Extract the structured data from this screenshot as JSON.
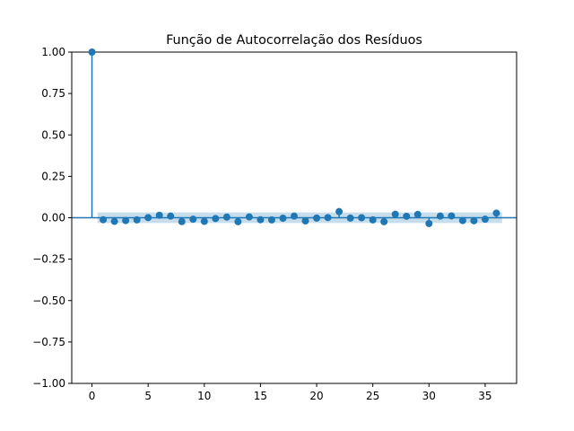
{
  "chart_data": {
    "type": "scatter",
    "title": "Função de Autocorrelação dos Resíduos",
    "xlabel": "",
    "ylabel": "",
    "xlim": [
      -1.8,
      37.8
    ],
    "ylim": [
      -1.0,
      1.0
    ],
    "xticks": [
      0,
      5,
      10,
      15,
      20,
      25,
      30,
      35
    ],
    "yticks": [
      -1.0,
      -0.75,
      -0.5,
      -0.25,
      0.0,
      0.25,
      0.5,
      0.75,
      1.0
    ],
    "ytick_labels": [
      "−1.00",
      "−0.75",
      "−0.50",
      "−0.25",
      "0.00",
      "0.25",
      "0.50",
      "0.75",
      "1.00"
    ],
    "confidence_band": {
      "lower": -0.032,
      "upper": 0.032,
      "x_start": 0.5,
      "x_end": 36.5
    },
    "x": [
      0,
      1,
      2,
      3,
      4,
      5,
      6,
      7,
      8,
      9,
      10,
      11,
      12,
      13,
      14,
      15,
      16,
      17,
      18,
      19,
      20,
      21,
      22,
      23,
      24,
      25,
      26,
      27,
      28,
      29,
      30,
      31,
      32,
      33,
      34,
      35,
      36
    ],
    "values": [
      1.0,
      -0.012,
      -0.022,
      -0.017,
      -0.013,
      0.001,
      0.015,
      0.01,
      -0.023,
      -0.009,
      -0.022,
      -0.005,
      0.004,
      -0.024,
      0.005,
      -0.012,
      -0.013,
      -0.003,
      0.01,
      -0.019,
      -0.002,
      0.001,
      0.037,
      -0.002,
      0.0,
      -0.013,
      -0.024,
      0.021,
      0.009,
      0.02,
      -0.035,
      0.01,
      0.011,
      -0.017,
      -0.018,
      -0.009,
      0.028
    ],
    "colors": {
      "series": "#1f77b4",
      "band": "#1f77b4"
    },
    "grid": false
  }
}
